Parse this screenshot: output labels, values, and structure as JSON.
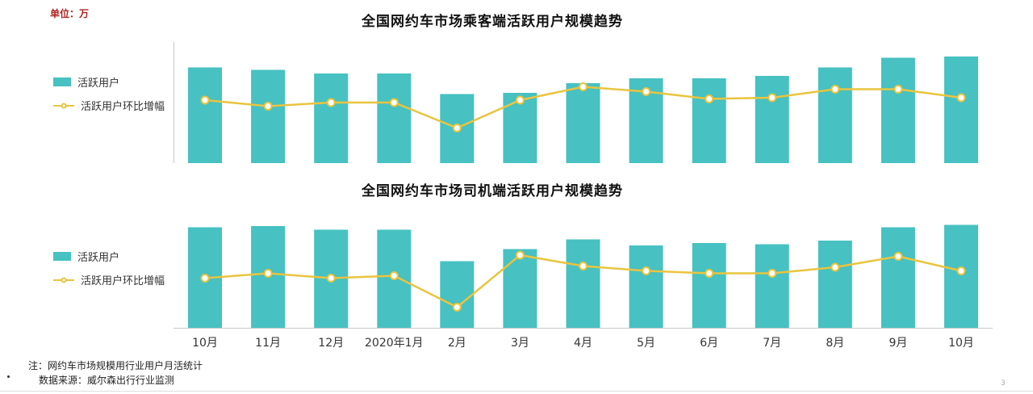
{
  "unit_label": "单位：万",
  "legend": {
    "bar_label": "活跃用户",
    "line_label": "活跃用户环比增幅"
  },
  "colors": {
    "bar": "#47c1c1",
    "line": "#e9c43f",
    "marker_fill": "#ffffff",
    "axis": "#c8c8c8",
    "unit_text": "#b22222",
    "x_label_text": "#333333"
  },
  "footer": {
    "note1": "注：网约车市场规模用行业用户月活统计",
    "note2": "数据来源：威尔森出行行业监测",
    "page_number": "3"
  },
  "chart_data": [
    {
      "type": "bar",
      "title": "全国网约车市场乘客端活跃用户规模趋势",
      "categories": [
        "10月",
        "11月",
        "12月",
        "2020年1月",
        "2月",
        "3月",
        "4月",
        "5月",
        "6月",
        "7月",
        "8月",
        "9月",
        "10月"
      ],
      "series": [
        {
          "name": "活跃用户",
          "type": "bar",
          "values": [
            79,
            77,
            74,
            74,
            57,
            58,
            66,
            70,
            70,
            72,
            79,
            87,
            88
          ]
        },
        {
          "name": "活跃用户环比增幅",
          "type": "line",
          "values": [
            52,
            47,
            50,
            50,
            29,
            52,
            63,
            59,
            53,
            54,
            61,
            61,
            54
          ]
        }
      ],
      "xlabel": "",
      "ylabel": "",
      "ylim": [
        0,
        100
      ],
      "grid": false,
      "legend_position": "left",
      "value_scale": "relative 0-100; numeric axis ticks not shown in source image"
    },
    {
      "type": "bar",
      "title": "全国网约车市场司机端活跃用户规模趋势",
      "categories": [
        "10月",
        "11月",
        "12月",
        "2020年1月",
        "2月",
        "3月",
        "4月",
        "5月",
        "6月",
        "7月",
        "8月",
        "9月",
        "10月"
      ],
      "series": [
        {
          "name": "活跃用户",
          "type": "bar",
          "values": [
            83,
            84,
            81,
            81,
            55,
            65,
            73,
            68,
            70,
            69,
            72,
            83,
            85
          ]
        },
        {
          "name": "活跃用户环比增幅",
          "type": "line",
          "values": [
            41,
            45,
            41,
            43,
            17,
            60,
            51,
            47,
            45,
            45,
            50,
            59,
            47
          ]
        }
      ],
      "xlabel": "",
      "ylabel": "",
      "ylim": [
        0,
        100
      ],
      "grid": false,
      "legend_position": "left",
      "value_scale": "relative 0-100; numeric axis ticks not shown in source image"
    }
  ]
}
